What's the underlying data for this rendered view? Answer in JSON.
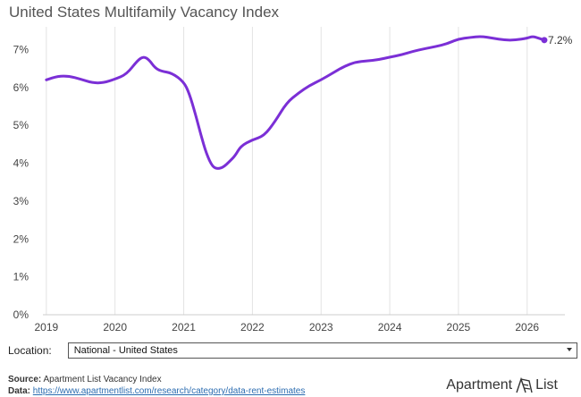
{
  "chart_data": {
    "type": "line",
    "title": "United States Multifamily Vacancy Index",
    "x": [
      2019.0,
      2019.17,
      2019.33,
      2019.5,
      2019.67,
      2019.83,
      2020.0,
      2020.17,
      2020.33,
      2020.42,
      2020.5,
      2020.58,
      2020.67,
      2020.83,
      2021.0,
      2021.08,
      2021.17,
      2021.25,
      2021.33,
      2021.42,
      2021.5,
      2021.58,
      2021.67,
      2021.75,
      2021.83,
      2022.0,
      2022.17,
      2022.33,
      2022.5,
      2022.67,
      2022.83,
      2023.0,
      2023.17,
      2023.33,
      2023.5,
      2023.67,
      2023.83,
      2024.0,
      2024.17,
      2024.33,
      2024.5,
      2024.67,
      2024.83,
      2025.0,
      2025.17,
      2025.33,
      2025.5,
      2025.67,
      2025.83,
      2026.0,
      2026.08,
      2026.17,
      2026.25
    ],
    "series": [
      {
        "values": [
          6.2,
          6.3,
          6.3,
          6.22,
          6.12,
          6.12,
          6.22,
          6.35,
          6.72,
          6.82,
          6.72,
          6.52,
          6.43,
          6.38,
          6.15,
          5.85,
          5.3,
          4.75,
          4.25,
          3.9,
          3.85,
          3.9,
          4.05,
          4.2,
          4.45,
          4.62,
          4.72,
          5.1,
          5.6,
          5.85,
          6.05,
          6.2,
          6.38,
          6.55,
          6.67,
          6.7,
          6.73,
          6.8,
          6.86,
          6.95,
          7.02,
          7.08,
          7.15,
          7.28,
          7.32,
          7.35,
          7.3,
          7.25,
          7.25,
          7.3,
          7.35,
          7.3,
          7.25
        ],
        "color": "#7b2fd6"
      }
    ],
    "end_label": "7.2%",
    "x_ticks": [
      "2019",
      "2020",
      "2021",
      "2022",
      "2023",
      "2024",
      "2025",
      "2026"
    ],
    "y_ticks": [
      "0%",
      "1%",
      "2%",
      "3%",
      "4%",
      "5%",
      "6%",
      "7%"
    ],
    "xlim": [
      2018.95,
      2026.55
    ],
    "ylim": [
      0,
      7.6
    ],
    "grid": "vertical gridlines at each year"
  },
  "controls": {
    "location_label": "Location:",
    "location_value": "National - United States"
  },
  "footer": {
    "source_label": "Source:",
    "source_text": "Apartment List Vacancy Index",
    "data_label": "Data:",
    "data_link": "https://www.apartmentlist.com/research/category/data-rent-estimates"
  },
  "logo": {
    "text_left": "Apartment",
    "text_right": "List"
  },
  "colors": {
    "line": "#7b2fd6",
    "grid": "#e3e3e3",
    "axis": "#cccccc",
    "link": "#2b6cb0"
  }
}
